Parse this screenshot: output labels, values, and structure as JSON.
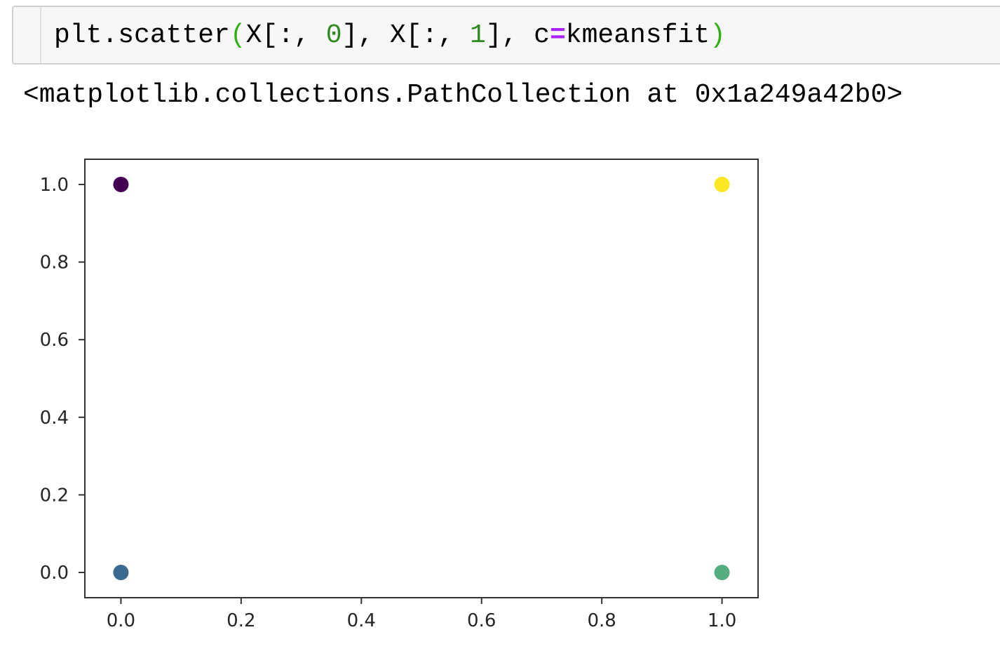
{
  "cell": {
    "code_tokens": [
      {
        "text": "plt.scatter",
        "kind": "plain"
      },
      {
        "text": "(",
        "kind": "paren"
      },
      {
        "text": "X[:, ",
        "kind": "plain"
      },
      {
        "text": "0",
        "kind": "num"
      },
      {
        "text": "], X[:, ",
        "kind": "plain"
      },
      {
        "text": "1",
        "kind": "num"
      },
      {
        "text": "], c",
        "kind": "plain"
      },
      {
        "text": "=",
        "kind": "op"
      },
      {
        "text": "kmeansfit",
        "kind": "plain"
      },
      {
        "text": ")",
        "kind": "paren"
      }
    ]
  },
  "output": {
    "repr_text": "<matplotlib.collections.PathCollection at 0x1a249a42b0>"
  },
  "chart_data": {
    "type": "scatter",
    "title": "",
    "xlabel": "",
    "ylabel": "",
    "xlim": [
      -0.06,
      1.06
    ],
    "ylim": [
      -0.065,
      1.065
    ],
    "xticks": [
      0.0,
      0.2,
      0.4,
      0.6,
      0.8,
      1.0
    ],
    "yticks": [
      0.0,
      0.2,
      0.4,
      0.6,
      0.8,
      1.0
    ],
    "xtick_labels": [
      "0.0",
      "0.2",
      "0.4",
      "0.6",
      "0.8",
      "1.0"
    ],
    "ytick_labels": [
      "0.0",
      "0.2",
      "0.4",
      "0.6",
      "0.8",
      "1.0"
    ],
    "grid": false,
    "points": [
      {
        "x": 0,
        "y": 1,
        "color": "#440154"
      },
      {
        "x": 1,
        "y": 1,
        "color": "#fde725"
      },
      {
        "x": 0,
        "y": 0,
        "color": "#3b6a8f"
      },
      {
        "x": 1,
        "y": 0,
        "color": "#55ad7f"
      }
    ]
  }
}
